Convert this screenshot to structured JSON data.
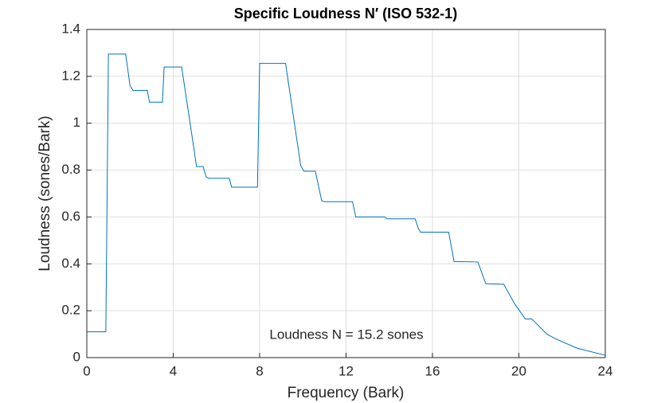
{
  "chart_data": {
    "type": "line",
    "title": "Specific Loudness N′ (ISO 532-1)",
    "xlabel": "Frequency (Bark)",
    "ylabel": "Loudness (sones/Bark)",
    "annotation": "Loudness N = 15.2 sones",
    "x": [
      0,
      0.88,
      1.0,
      1.8,
      2.0,
      2.14,
      2.8,
      2.9,
      3.5,
      3.58,
      4.39,
      4.7,
      5.08,
      5.38,
      5.53,
      5.64,
      6.6,
      6.7,
      7.9,
      8.0,
      9.2,
      9.9,
      10.05,
      10.58,
      10.87,
      11.0,
      12.3,
      12.45,
      13.8,
      13.9,
      15.2,
      15.35,
      15.45,
      16.75,
      17.0,
      18.1,
      18.47,
      19.3,
      19.8,
      20.3,
      20.6,
      21.3,
      21.7,
      22.7,
      24
    ],
    "series": [
      {
        "color": "#0072bd",
        "values": [
          0.11,
          0.11,
          1.295,
          1.295,
          1.16,
          1.14,
          1.14,
          1.09,
          1.09,
          1.24,
          1.24,
          1.05,
          0.815,
          0.815,
          0.77,
          0.765,
          0.765,
          0.727,
          0.727,
          1.255,
          1.255,
          0.82,
          0.795,
          0.795,
          0.67,
          0.665,
          0.665,
          0.6,
          0.6,
          0.592,
          0.592,
          0.55,
          0.535,
          0.535,
          0.41,
          0.408,
          0.315,
          0.313,
          0.23,
          0.165,
          0.165,
          0.1,
          0.08,
          0.04,
          0.01
        ]
      }
    ],
    "xlim": [
      0,
      24
    ],
    "xticks": [
      0,
      4,
      8,
      12,
      16,
      20,
      24
    ],
    "ylim": [
      0,
      1.4
    ],
    "yticks": [
      0,
      0.2,
      0.4,
      0.6,
      0.8,
      1,
      1.2,
      1.4
    ],
    "grid": true
  }
}
